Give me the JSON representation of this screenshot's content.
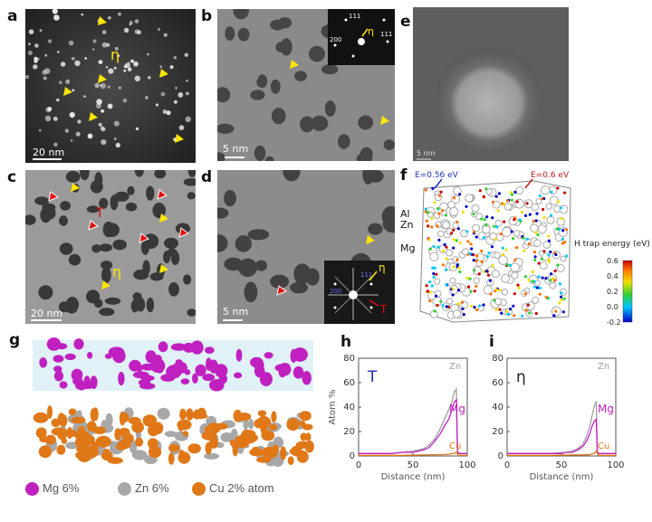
{
  "panels": {
    "a": {
      "label": "a",
      "scalebar": "20 nm",
      "annotation": "η"
    },
    "b": {
      "label": "b",
      "scalebar": "5 nm",
      "inset_annotation": "η",
      "inset_spots": [
        "111",
        "200",
        "111"
      ]
    },
    "c": {
      "label": "c",
      "scalebar": "20 nm",
      "annotations": [
        "T",
        "η"
      ]
    },
    "d": {
      "label": "d",
      "scalebar": "5 nm",
      "inset_annotations": [
        "η",
        "T"
      ],
      "inset_spots": [
        "111",
        "200"
      ]
    },
    "e": {
      "label": "e",
      "scalebar": "5 nm"
    },
    "f": {
      "label": "f",
      "energy_blue": "E=0.56 eV",
      "energy_red": "E=0.6 eV",
      "atoms": [
        "Al",
        "Zn",
        "Mg"
      ],
      "colorbar_title": "H trap energy (eV)",
      "colorbar_ticks": [
        "0.6",
        "0.4",
        "0.2",
        "0.0",
        "-0.2"
      ],
      "colorbar_range": [
        -0.2,
        0.6
      ],
      "colorbar_colors": [
        "#0000c8",
        "#00c8ff",
        "#30d030",
        "#f0e000",
        "#ff7000",
        "#c80000"
      ]
    },
    "g": {
      "label": "g",
      "legend": [
        {
          "name": "Mg 6%",
          "color": "#c020c0"
        },
        {
          "name": "Zn 6%",
          "color": "#a8a8a8"
        },
        {
          "name": "Cu 2% atom",
          "color": "#e07818"
        }
      ]
    },
    "h": {
      "label": "h",
      "phase": "T"
    },
    "i": {
      "label": "i",
      "phase": "η"
    }
  },
  "chart_data": [
    {
      "type": "line",
      "panel": "h",
      "title": "T",
      "xlabel": "Distance (nm)",
      "ylabel": "Atom %",
      "xlim": [
        0,
        100
      ],
      "ylim": [
        0,
        80
      ],
      "xticks": [
        "0",
        "50",
        "100"
      ],
      "yticks": [
        "0",
        "20",
        "40",
        "60",
        "80"
      ],
      "series": [
        {
          "name": "Zn",
          "color": "#a0a0a0",
          "x": [
            0,
            10,
            20,
            30,
            40,
            50,
            60,
            65,
            70,
            75,
            80,
            83,
            86,
            88,
            90,
            91,
            92,
            95,
            100
          ],
          "y": [
            2,
            2,
            2,
            2,
            3,
            4,
            6,
            9,
            14,
            22,
            32,
            38,
            45,
            52,
            55,
            4,
            2,
            2,
            2
          ]
        },
        {
          "name": "Mg",
          "color": "#c020c0",
          "x": [
            0,
            10,
            20,
            30,
            40,
            50,
            60,
            65,
            70,
            75,
            80,
            83,
            86,
            88,
            90,
            91,
            92,
            95,
            100
          ],
          "y": [
            2,
            2,
            2,
            2,
            3,
            3,
            5,
            7,
            12,
            18,
            26,
            30,
            38,
            44,
            46,
            4,
            2,
            2,
            2
          ]
        },
        {
          "name": "Cu",
          "color": "#e07818",
          "x": [
            0,
            20,
            40,
            60,
            80,
            88,
            90,
            92,
            100
          ],
          "y": [
            0.5,
            0.5,
            0.5,
            0.8,
            1.2,
            2,
            3,
            0.5,
            0.5
          ]
        }
      ]
    },
    {
      "type": "line",
      "panel": "i",
      "title": "η",
      "xlabel": "Distance (nm)",
      "ylabel": "",
      "xlim": [
        0,
        100
      ],
      "ylim": [
        0,
        80
      ],
      "xticks": [
        "0",
        "50",
        "100"
      ],
      "yticks": [
        "0",
        "20",
        "40",
        "60",
        "80"
      ],
      "series": [
        {
          "name": "Zn",
          "color": "#a0a0a0",
          "x": [
            0,
            10,
            20,
            30,
            40,
            50,
            55,
            60,
            65,
            70,
            73,
            76,
            78,
            80,
            82,
            83,
            85,
            90,
            100
          ],
          "y": [
            2,
            2,
            2,
            2,
            2,
            3,
            3,
            4,
            6,
            10,
            16,
            24,
            32,
            40,
            45,
            3,
            2,
            2,
            2
          ]
        },
        {
          "name": "Mg",
          "color": "#c020c0",
          "x": [
            0,
            10,
            20,
            30,
            40,
            50,
            55,
            60,
            65,
            70,
            73,
            76,
            78,
            80,
            82,
            83,
            85,
            90,
            100
          ],
          "y": [
            2,
            2,
            2,
            2,
            2,
            2,
            3,
            3,
            5,
            8,
            12,
            18,
            24,
            28,
            30,
            3,
            2,
            2,
            2
          ]
        },
        {
          "name": "Cu",
          "color": "#e07818",
          "x": [
            0,
            20,
            40,
            60,
            75,
            80,
            82,
            84,
            100
          ],
          "y": [
            0.5,
            0.5,
            0.5,
            0.8,
            1,
            2,
            4,
            0.5,
            0.5
          ]
        }
      ]
    }
  ]
}
